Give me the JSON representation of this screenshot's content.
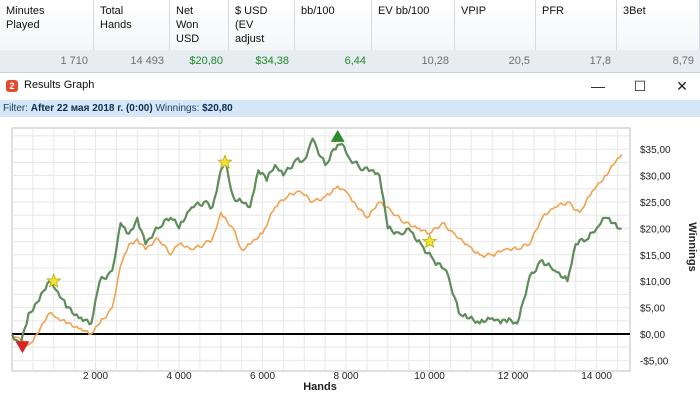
{
  "stats": {
    "columns": [
      {
        "header": "Minutes\nPlayed",
        "value": "1 710"
      },
      {
        "header": "Total\nHands",
        "value": "14 493"
      },
      {
        "header": "Net\nWon\nUSD",
        "value": "$20,80"
      },
      {
        "header": "$ USD\n(EV\nadjust",
        "value": "$34,38"
      },
      {
        "header": "bb/100",
        "value": "6,44"
      },
      {
        "header": "EV bb/100",
        "value": "10,28"
      },
      {
        "header": "VPIP",
        "value": "20,5"
      },
      {
        "header": "PFR",
        "value": "17,8"
      },
      {
        "header": "3Bet",
        "value": "8,79"
      }
    ],
    "positive_color": "#1d8a2a"
  },
  "window": {
    "title": "Results Graph",
    "icon": "app-logo-icon",
    "minimize": "—",
    "maximize": "☐",
    "close": "✕"
  },
  "filter": {
    "label": "Filter:",
    "value": "After 22 мая 2018 г. (0:00)",
    "winnings_label": "Winnings:",
    "winnings_value": "$20,80"
  },
  "chart_data": {
    "type": "line",
    "xlabel": "Hands",
    "ylabel": "Winnings",
    "xlim": [
      0,
      14800
    ],
    "ylim": [
      -7,
      39
    ],
    "x_ticks": [
      2000,
      4000,
      6000,
      8000,
      10000,
      12000,
      14000
    ],
    "x_tick_labels": [
      "2 000",
      "4 000",
      "6 000",
      "8 000",
      "10 000",
      "12 000",
      "14 000"
    ],
    "y_ticks": [
      -5,
      0,
      5,
      10,
      15,
      20,
      25,
      30,
      35
    ],
    "y_tick_labels": [
      "-$5,00",
      "$0,00",
      "$5,00",
      "$10,00",
      "$15,00",
      "$20,00",
      "$25,00",
      "$30,00",
      "$35,00"
    ],
    "grid": true,
    "series": [
      {
        "color": "#5e8c5a",
        "x": [
          0,
          200,
          400,
          600,
          900,
          1100,
          1300,
          1600,
          1900,
          2100,
          2400,
          2600,
          2800,
          3000,
          3200,
          3500,
          3800,
          4000,
          4300,
          4600,
          4800,
          5000,
          5100,
          5300,
          5500,
          5700,
          5900,
          6100,
          6300,
          6500,
          6800,
          7000,
          7200,
          7500,
          7700,
          7900,
          8100,
          8400,
          8600,
          8800,
          9000,
          9300,
          9500,
          9800,
          10100,
          10400,
          10700,
          10900,
          11200,
          11500,
          11700,
          11900,
          12100,
          12400,
          12700,
          13000,
          13300,
          13500,
          13800,
          14000,
          14200,
          14400,
          14600
        ],
        "y": [
          0,
          -2,
          4,
          6,
          10,
          8,
          5,
          3,
          2,
          10,
          12,
          21,
          19,
          22,
          17,
          20,
          22,
          20,
          24,
          25,
          24,
          31,
          33,
          26,
          25,
          24,
          31,
          29,
          32,
          30,
          33,
          33,
          37,
          32,
          35,
          36,
          33,
          31,
          31,
          30,
          20,
          19,
          20,
          17,
          14,
          12,
          4,
          3,
          2,
          3,
          2,
          3,
          2,
          11,
          14,
          12,
          10,
          17,
          18,
          20,
          22,
          21,
          20
        ]
      },
      {
        "color": "#f0a24e",
        "x": [
          0,
          200,
          400,
          600,
          900,
          1100,
          1300,
          1600,
          1900,
          2100,
          2400,
          2600,
          2800,
          3000,
          3200,
          3500,
          3800,
          4000,
          4300,
          4600,
          4800,
          5000,
          5300,
          5500,
          5700,
          6000,
          6300,
          6600,
          6900,
          7200,
          7500,
          7800,
          8000,
          8200,
          8500,
          8800,
          9100,
          9400,
          9700,
          10000,
          10300,
          10600,
          10900,
          11200,
          11500,
          11800,
          12100,
          12400,
          12700,
          13000,
          13300,
          13600,
          13800,
          14000,
          14200,
          14400,
          14600
        ],
        "y": [
          0,
          -1,
          -2,
          0,
          4,
          3,
          2,
          1,
          0,
          2,
          5,
          13,
          17,
          18,
          16,
          18,
          15,
          17,
          16,
          17,
          18,
          23,
          20,
          16,
          17,
          19,
          24,
          26,
          27,
          25,
          26,
          28,
          27,
          25,
          22,
          25,
          23,
          21,
          20,
          19,
          21,
          19,
          17,
          15,
          15,
          16,
          16,
          17,
          22,
          24,
          25,
          23,
          26,
          28,
          30,
          32,
          34
        ]
      }
    ],
    "markers": [
      {
        "kind": "max",
        "x": 7800,
        "y": 37.5,
        "color": "#2f8a2f"
      },
      {
        "kind": "min",
        "x": 250,
        "y": -2.5,
        "color": "#d62424"
      },
      {
        "kind": "star",
        "x": 1000,
        "y": 10,
        "color": "#f2e435"
      },
      {
        "kind": "star",
        "x": 5100,
        "y": 32.5,
        "color": "#f2e435"
      },
      {
        "kind": "star",
        "x": 10000,
        "y": 17.5,
        "color": "#f2e435"
      }
    ]
  }
}
